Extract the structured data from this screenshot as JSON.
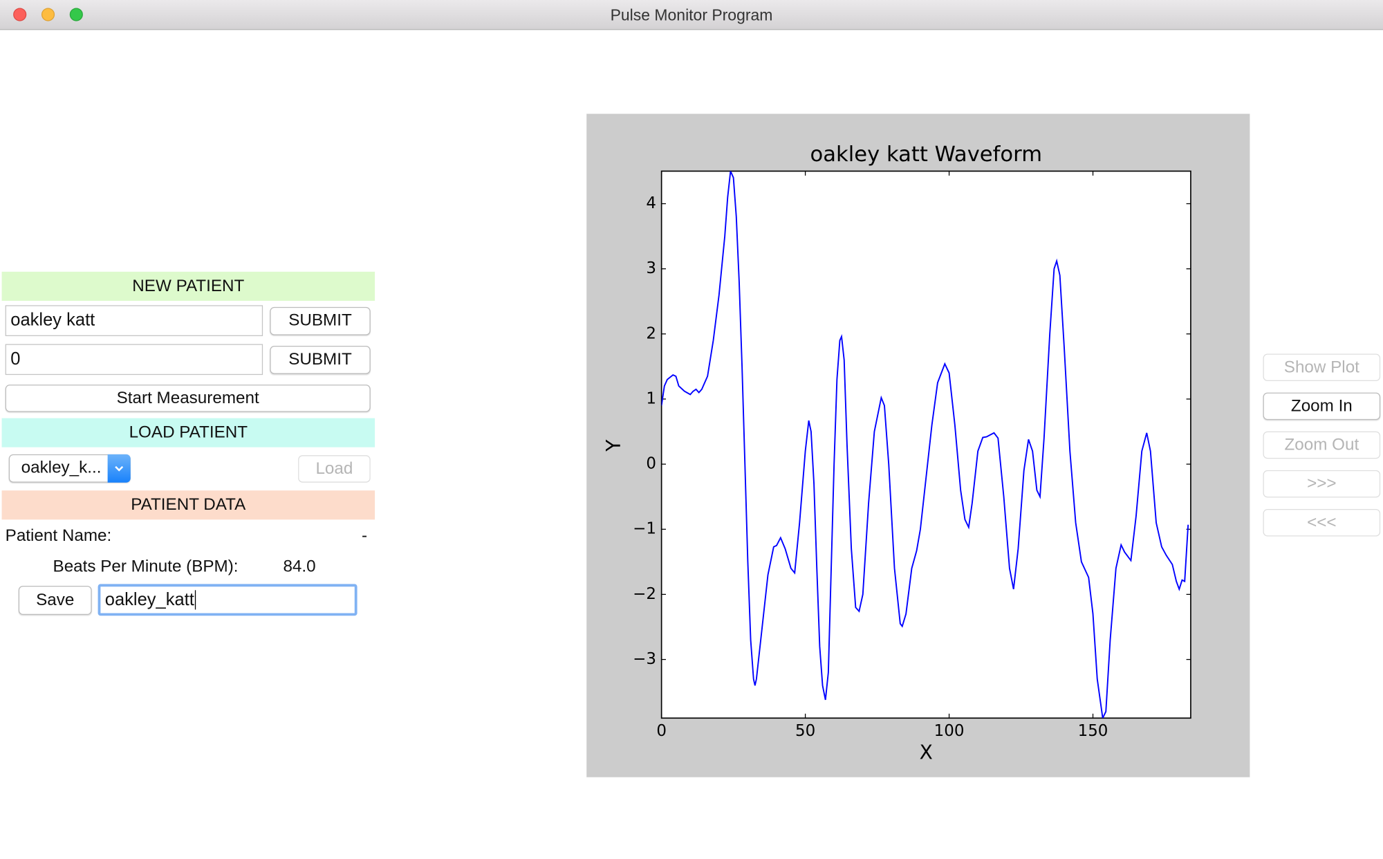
{
  "window": {
    "title": "Pulse Monitor Program"
  },
  "new_patient": {
    "header": "NEW PATIENT",
    "name_input": "oakley katt",
    "name_submit": "SUBMIT",
    "id_input": "0",
    "id_submit": "SUBMIT",
    "start_button": "Start Measurement"
  },
  "load_patient": {
    "header": "LOAD PATIENT",
    "dropdown": "oakley_k...",
    "load_button": "Load"
  },
  "patient_data": {
    "header": "PATIENT DATA",
    "name_label": "Patient Name:",
    "name_value": "-",
    "bpm_label": "Beats Per Minute (BPM):",
    "bpm_value": "84.0",
    "save_button": "Save",
    "filename_input": "oakley_katt"
  },
  "plot_controls": {
    "buttons": [
      "Show Plot",
      "Zoom In",
      "Zoom Out",
      ">>>",
      "<<<"
    ]
  },
  "chart_data": {
    "type": "line",
    "title": "oakley katt Waveform",
    "xlabel": "X",
    "ylabel": "Y",
    "color": "#0000ff",
    "xlim": [
      0,
      184
    ],
    "ylim": [
      -3.9,
      4.5
    ],
    "xticks": [
      0,
      50,
      100,
      150
    ],
    "yticks": [
      {
        "value": -3,
        "label": "−3"
      },
      {
        "value": -2,
        "label": "−2"
      },
      {
        "value": -1,
        "label": "−1"
      },
      0,
      1,
      2,
      3,
      4
    ],
    "x": [
      0,
      1,
      2,
      4,
      5,
      6,
      8,
      10,
      11,
      12,
      13,
      14,
      16,
      18,
      20,
      22,
      23,
      24,
      25,
      26,
      27,
      28,
      29,
      30,
      31,
      32,
      32.5,
      33,
      35,
      37,
      39,
      40,
      41.4,
      43,
      45,
      46.3,
      48,
      50,
      51.2,
      52,
      53,
      54,
      55,
      56,
      57,
      58,
      59,
      60,
      61,
      62,
      62.6,
      63.5,
      64.5,
      66,
      67.5,
      68.7,
      70,
      72,
      74,
      76.4,
      77.5,
      79,
      81,
      83,
      83.7,
      85,
      87,
      88.7,
      90,
      92,
      94,
      96,
      98.5,
      100,
      102,
      104,
      105.5,
      106.8,
      108,
      110,
      111.7,
      113,
      115.6,
      117,
      119,
      121,
      122.4,
      124,
      126,
      127.6,
      129,
      130.5,
      131.6,
      133,
      135,
      136.5,
      137.4,
      138.5,
      140,
      142,
      144,
      146,
      148.5,
      150,
      151.5,
      153.4,
      154.5,
      156,
      158,
      159.8,
      161,
      163.2,
      165,
      167,
      168.7,
      170,
      172,
      173.9,
      175.5,
      177.6,
      179,
      180,
      181,
      181.9,
      183.1
    ],
    "values": [
      0.9,
      1.2,
      1.3,
      1.37,
      1.35,
      1.2,
      1.12,
      1.07,
      1.12,
      1.15,
      1.1,
      1.15,
      1.35,
      1.9,
      2.6,
      3.5,
      4.1,
      4.5,
      4.4,
      3.8,
      2.8,
      1.5,
      0,
      -1.5,
      -2.7,
      -3.3,
      -3.4,
      -3.3,
      -2.5,
      -1.7,
      -1.27,
      -1.25,
      -1.13,
      -1.3,
      -1.6,
      -1.67,
      -0.9,
      0.2,
      0.67,
      0.5,
      -0.3,
      -1.6,
      -2.8,
      -3.4,
      -3.62,
      -3.2,
      -1.6,
      0,
      1.3,
      1.9,
      1.96,
      1.6,
      0.3,
      -1.3,
      -2.2,
      -2.26,
      -2.0,
      -0.6,
      0.5,
      1.02,
      0.9,
      0,
      -1.6,
      -2.45,
      -2.49,
      -2.3,
      -1.6,
      -1.33,
      -1.0,
      -0.2,
      0.6,
      1.25,
      1.54,
      1.4,
      0.6,
      -0.4,
      -0.85,
      -0.97,
      -0.6,
      0.2,
      0.41,
      0.42,
      0.48,
      0.4,
      -0.5,
      -1.6,
      -1.92,
      -1.3,
      -0.1,
      0.38,
      0.2,
      -0.4,
      -0.5,
      0.4,
      2.0,
      3.0,
      3.12,
      2.9,
      1.8,
      0.2,
      -0.9,
      -1.5,
      -1.74,
      -2.3,
      -3.3,
      -3.9,
      -3.8,
      -2.7,
      -1.6,
      -1.24,
      -1.35,
      -1.48,
      -0.8,
      0.2,
      0.48,
      0.2,
      -0.9,
      -1.27,
      -1.4,
      -1.54,
      -1.8,
      -1.92,
      -1.78,
      -1.8,
      -0.93
    ]
  }
}
